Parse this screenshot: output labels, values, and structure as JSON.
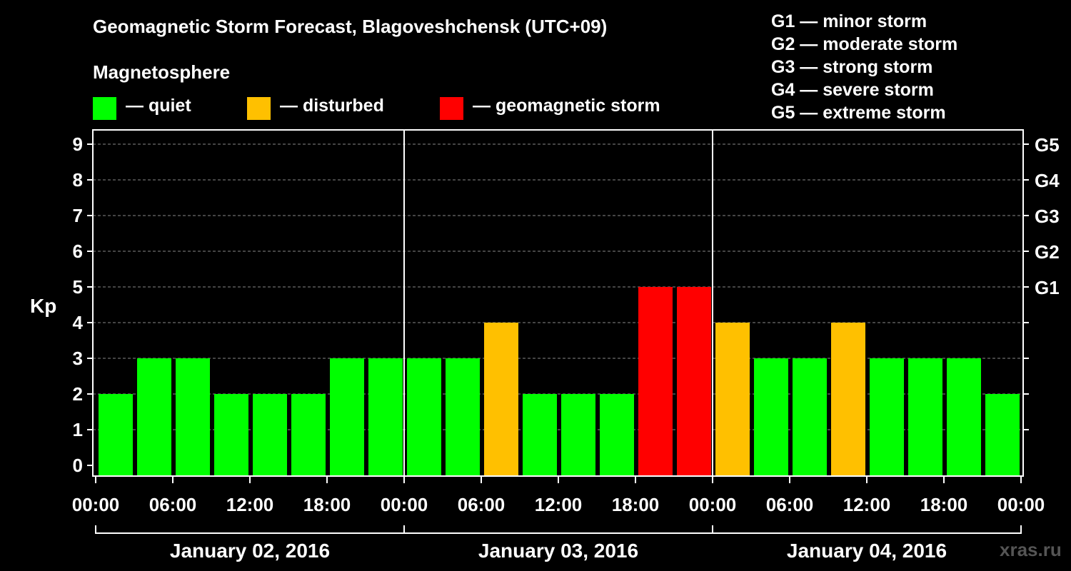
{
  "title": "Geomagnetic Storm Forecast, Blagoveshchensk (UTC+09)",
  "legend": {
    "heading": "Magnetosphere",
    "items": [
      {
        "label": "— quiet",
        "color": "#00ff00"
      },
      {
        "label": "— disturbed",
        "color": "#ffc000"
      },
      {
        "label": "— geomagnetic storm",
        "color": "#ff0000"
      }
    ]
  },
  "storm_scale": [
    "G1 — minor storm",
    "G2 — moderate storm",
    "G3 — strong storm",
    "G4 — severe storm",
    "G5 — extreme storm"
  ],
  "watermark": "xras.ru",
  "chart_data": {
    "type": "bar",
    "ylabel": "Kp",
    "ylim": [
      0,
      9
    ],
    "y_ticks": [
      "0",
      "1",
      "2",
      "3",
      "4",
      "5",
      "6",
      "7",
      "8",
      "9"
    ],
    "right_axis_labels": [
      {
        "kp": 5,
        "label": "G1"
      },
      {
        "kp": 6,
        "label": "G2"
      },
      {
        "kp": 7,
        "label": "G3"
      },
      {
        "kp": 8,
        "label": "G4"
      },
      {
        "kp": 9,
        "label": "G5"
      }
    ],
    "x_tick_labels": [
      "00:00",
      "06:00",
      "12:00",
      "18:00",
      "00:00",
      "06:00",
      "12:00",
      "18:00",
      "00:00",
      "06:00",
      "12:00",
      "18:00",
      "00:00"
    ],
    "days": [
      "January 02, 2016",
      "January 03, 2016",
      "January 04, 2016"
    ],
    "interval_hours": 3,
    "values": [
      2,
      3,
      3,
      2,
      2,
      2,
      3,
      3,
      3,
      3,
      4,
      2,
      2,
      2,
      5,
      5,
      4,
      3,
      3,
      4,
      3,
      3,
      3,
      2
    ],
    "color_thresholds": {
      "quiet_max": 3,
      "disturbed": 4,
      "storm_min": 5
    }
  }
}
